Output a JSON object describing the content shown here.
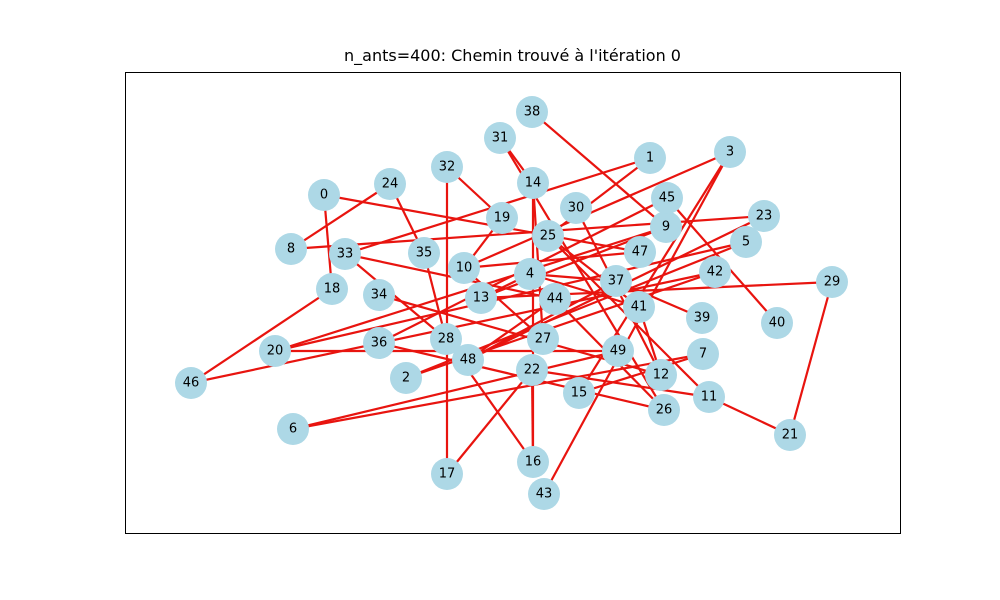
{
  "title": "n_ants=400: Chemin trouvé à l'itération 0",
  "colors": {
    "node": "#add8e6",
    "edge": "#e8140f",
    "frame": "#000000"
  },
  "nodes": [
    {
      "id": "0"
    },
    {
      "id": "1"
    },
    {
      "id": "2"
    },
    {
      "id": "3"
    },
    {
      "id": "4"
    },
    {
      "id": "5"
    },
    {
      "id": "6"
    },
    {
      "id": "7"
    },
    {
      "id": "8"
    },
    {
      "id": "9"
    },
    {
      "id": "10"
    },
    {
      "id": "11"
    },
    {
      "id": "12"
    },
    {
      "id": "13"
    },
    {
      "id": "14"
    },
    {
      "id": "15"
    },
    {
      "id": "16"
    },
    {
      "id": "17"
    },
    {
      "id": "18"
    },
    {
      "id": "19"
    },
    {
      "id": "20"
    },
    {
      "id": "21"
    },
    {
      "id": "22"
    },
    {
      "id": "23"
    },
    {
      "id": "24"
    },
    {
      "id": "25"
    },
    {
      "id": "26"
    },
    {
      "id": "27"
    },
    {
      "id": "28"
    },
    {
      "id": "29"
    },
    {
      "id": "30"
    },
    {
      "id": "31"
    },
    {
      "id": "32"
    },
    {
      "id": "33"
    },
    {
      "id": "34"
    },
    {
      "id": "35"
    },
    {
      "id": "36"
    },
    {
      "id": "37"
    },
    {
      "id": "38"
    },
    {
      "id": "39"
    },
    {
      "id": "40"
    },
    {
      "id": "41"
    },
    {
      "id": "42"
    },
    {
      "id": "43"
    },
    {
      "id": "44"
    },
    {
      "id": "45"
    },
    {
      "id": "46"
    },
    {
      "id": "47"
    },
    {
      "id": "48"
    },
    {
      "id": "49"
    }
  ],
  "edges": [
    [
      "0",
      "18"
    ],
    [
      "0",
      "47"
    ],
    [
      "1",
      "25"
    ],
    [
      "1",
      "33"
    ],
    [
      "3",
      "43"
    ],
    [
      "3",
      "10"
    ],
    [
      "5",
      "20"
    ],
    [
      "6",
      "49"
    ],
    [
      "6",
      "7"
    ],
    [
      "7",
      "15"
    ],
    [
      "8",
      "23"
    ],
    [
      "9",
      "13"
    ],
    [
      "9",
      "38"
    ],
    [
      "10",
      "19"
    ],
    [
      "10",
      "27"
    ],
    [
      "10",
      "47"
    ],
    [
      "11",
      "21"
    ],
    [
      "11",
      "22"
    ],
    [
      "11",
      "25"
    ],
    [
      "12",
      "30"
    ],
    [
      "12",
      "34"
    ],
    [
      "13",
      "29"
    ],
    [
      "14",
      "31"
    ],
    [
      "14",
      "27"
    ],
    [
      "14",
      "16"
    ],
    [
      "15",
      "3"
    ],
    [
      "16",
      "22"
    ],
    [
      "16",
      "28"
    ],
    [
      "17",
      "22"
    ],
    [
      "17",
      "32"
    ],
    [
      "18",
      "46"
    ],
    [
      "19",
      "32"
    ],
    [
      "20",
      "9"
    ],
    [
      "20",
      "49"
    ],
    [
      "21",
      "29"
    ],
    [
      "24",
      "35"
    ],
    [
      "24",
      "8"
    ],
    [
      "25",
      "41"
    ],
    [
      "26",
      "44"
    ],
    [
      "26",
      "36"
    ],
    [
      "26",
      "31"
    ],
    [
      "28",
      "35"
    ],
    [
      "28",
      "33"
    ],
    [
      "33",
      "44"
    ],
    [
      "36",
      "45"
    ],
    [
      "37",
      "4"
    ],
    [
      "37",
      "39"
    ],
    [
      "37",
      "48"
    ],
    [
      "41",
      "12"
    ],
    [
      "41",
      "4"
    ],
    [
      "42",
      "2"
    ],
    [
      "40",
      "45"
    ],
    [
      "42",
      "46"
    ],
    [
      "44",
      "48"
    ],
    [
      "48",
      "23"
    ],
    [
      "4",
      "13"
    ],
    [
      "2",
      "5"
    ]
  ]
}
